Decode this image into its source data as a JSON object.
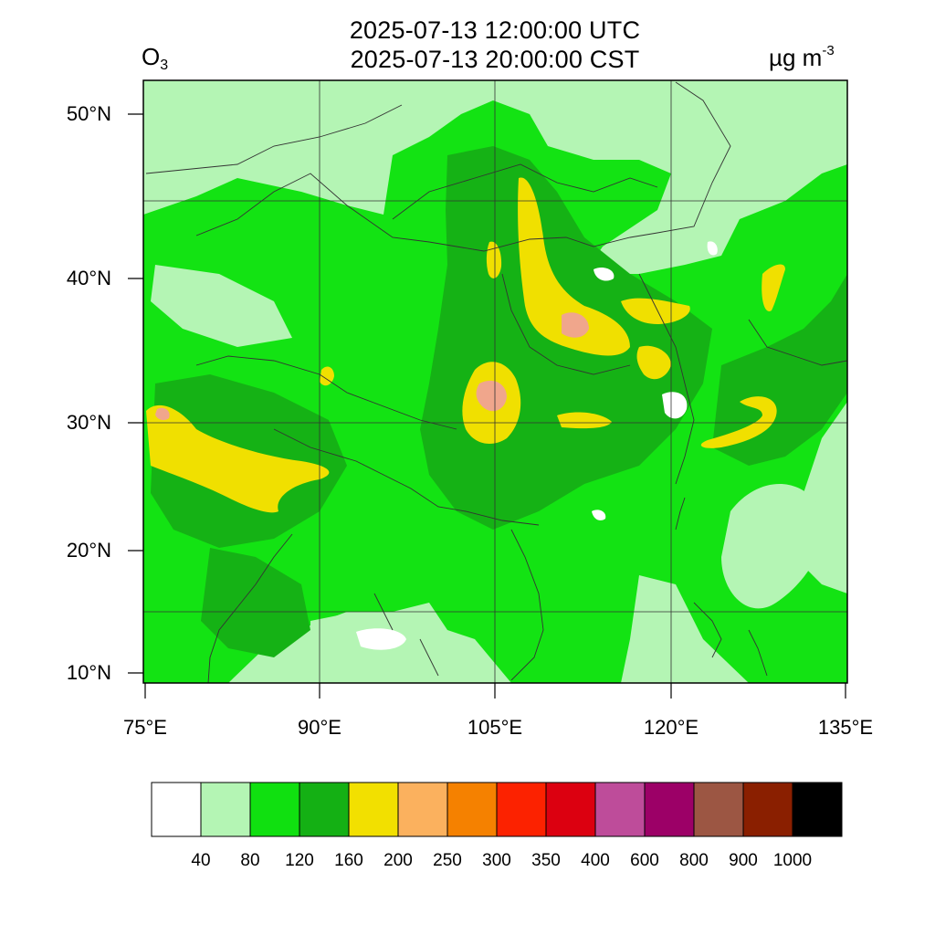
{
  "header": {
    "utc_time": "2025-07-13 12:00:00 UTC",
    "local_time": "2025-07-13 20:00:00 CST",
    "variable_main": "O",
    "variable_sub": "3",
    "unit_main": "µg m",
    "unit_exp": "-3"
  },
  "map": {
    "lat_ticks": [
      "50°N",
      "40°N",
      "30°N",
      "20°N",
      "10°N"
    ],
    "lon_ticks": [
      "75°E",
      "90°E",
      "105°E",
      "120°E",
      "135°E"
    ],
    "colors": {
      "lightgreen": "#b4f5b4",
      "green": "#13e313",
      "darkgreen": "#15b215",
      "yellow": "#f0e000",
      "pink": "#f0a68c",
      "white": "#ffffff",
      "border": "#333333"
    }
  },
  "colorbar": {
    "colors": [
      "#ffffff",
      "#b4f5b4",
      "#10e010",
      "#14b014",
      "#f2e000",
      "#fbb15e",
      "#f58100",
      "#fc2200",
      "#dc0010",
      "#be4c9a",
      "#9c0067",
      "#9c5643",
      "#8a1f00",
      "#000000"
    ],
    "labels": [
      "40",
      "80",
      "120",
      "160",
      "200",
      "250",
      "300",
      "350",
      "400",
      "600",
      "800",
      "900",
      "1000"
    ]
  }
}
